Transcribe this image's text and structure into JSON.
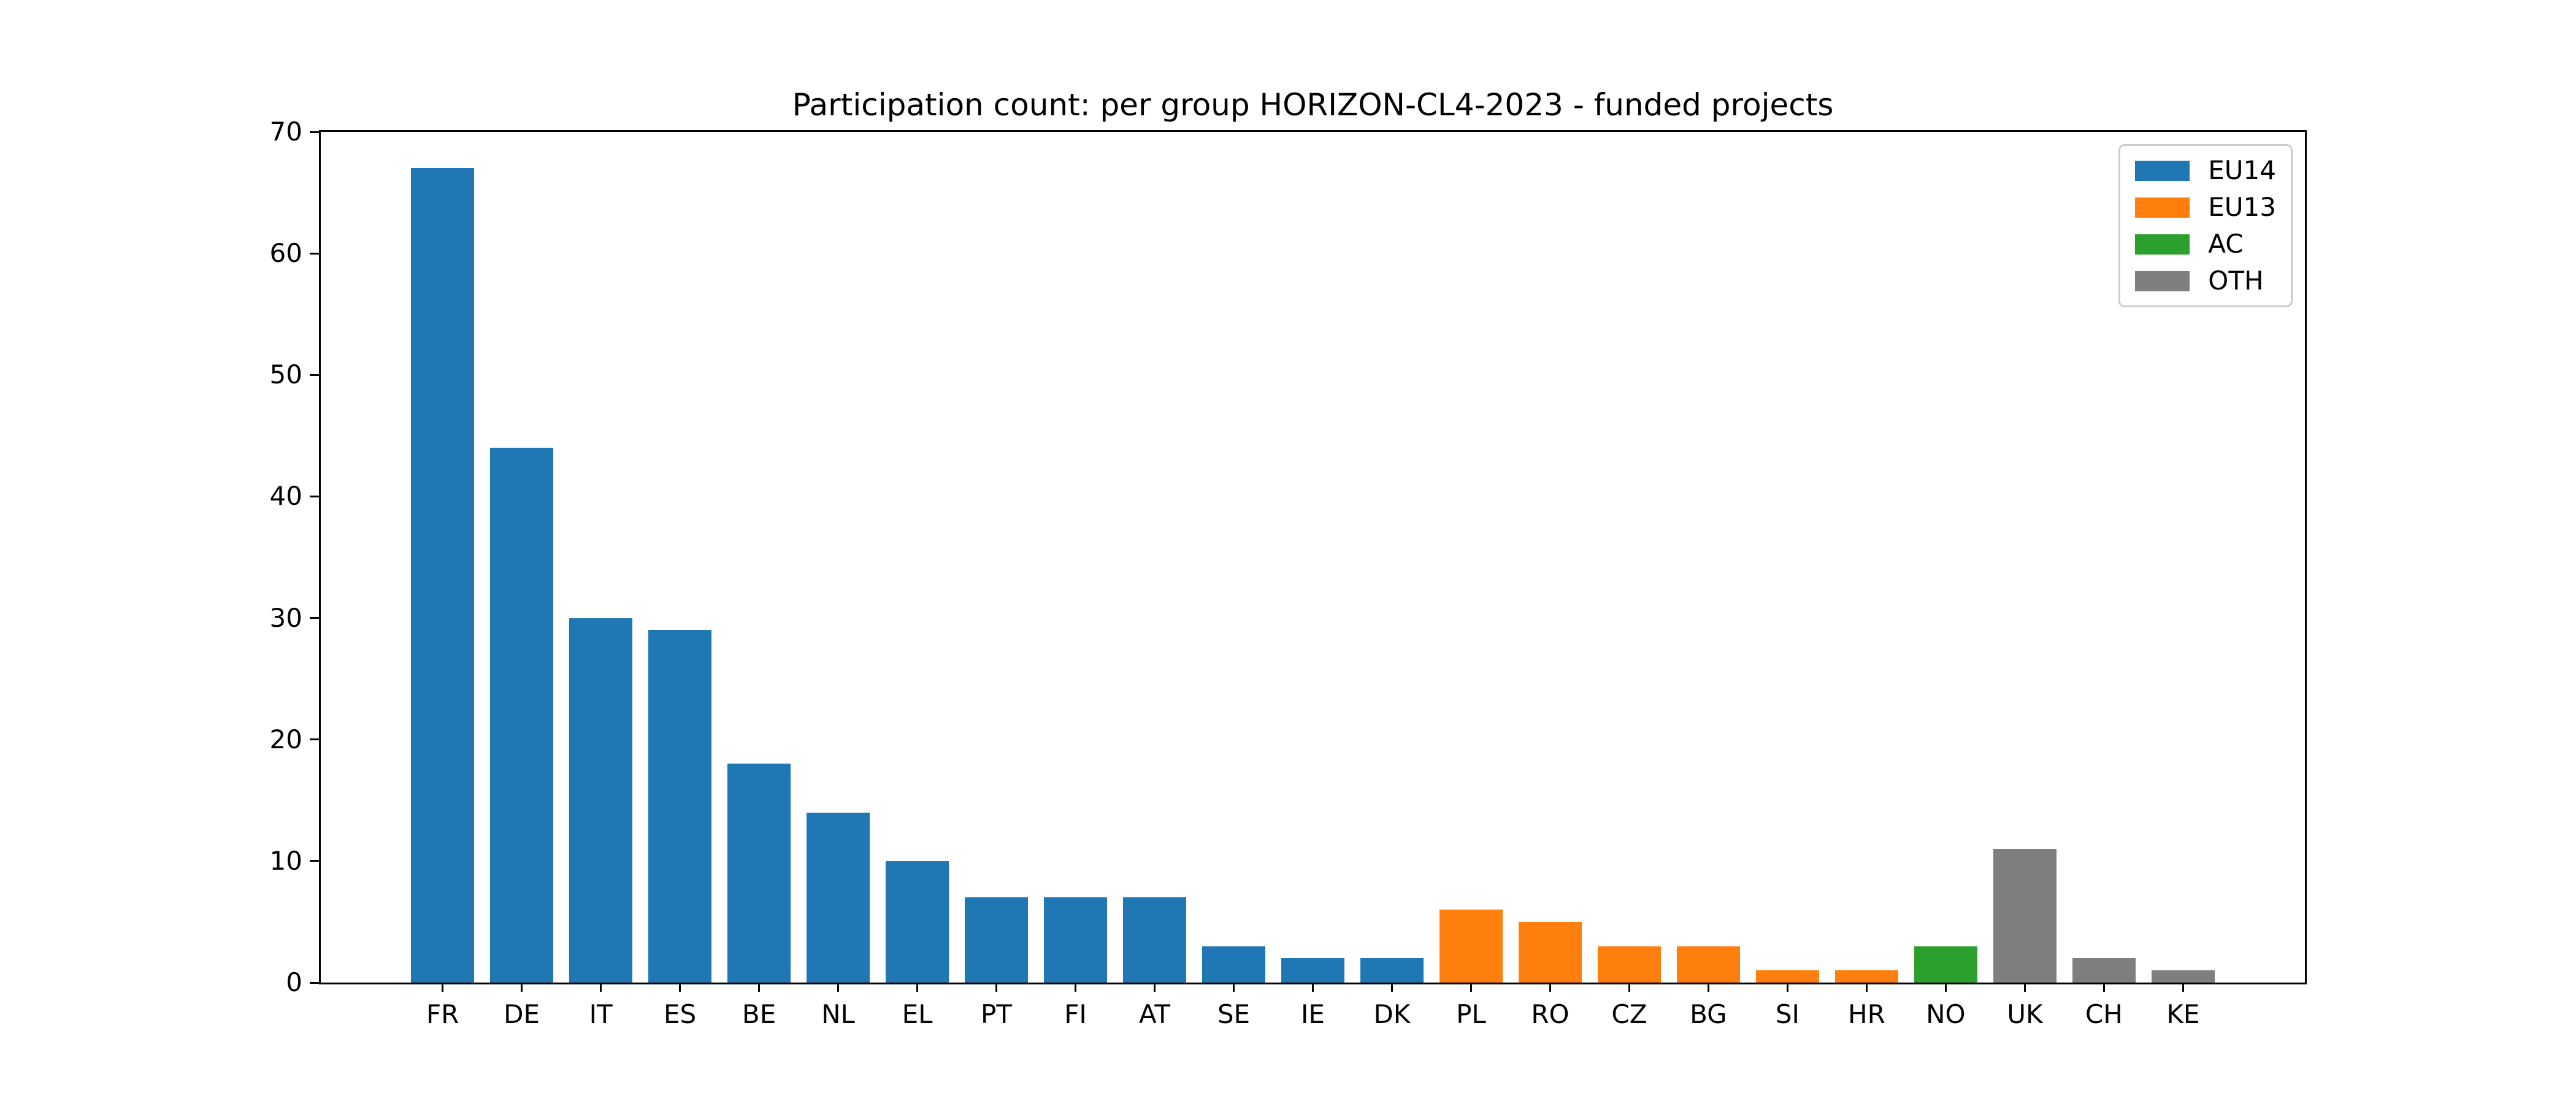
{
  "chart_data": {
    "type": "bar",
    "title": "Participation count: per group HORIZON-CL4-2023 - funded projects",
    "categories": [
      "FR",
      "DE",
      "IT",
      "ES",
      "BE",
      "NL",
      "EL",
      "PT",
      "FI",
      "AT",
      "SE",
      "IE",
      "DK",
      "PL",
      "RO",
      "CZ",
      "BG",
      "SI",
      "HR",
      "NO",
      "UK",
      "CH",
      "KE"
    ],
    "values": [
      67,
      44,
      30,
      29,
      18,
      14,
      10,
      7,
      7,
      7,
      3,
      2,
      2,
      6,
      5,
      3,
      3,
      1,
      1,
      3,
      11,
      2,
      1
    ],
    "groups": [
      "EU14",
      "EU14",
      "EU14",
      "EU14",
      "EU14",
      "EU14",
      "EU14",
      "EU14",
      "EU14",
      "EU14",
      "EU14",
      "EU14",
      "EU14",
      "EU13",
      "EU13",
      "EU13",
      "EU13",
      "EU13",
      "EU13",
      "AC",
      "OTH",
      "OTH",
      "OTH"
    ],
    "group_colors": {
      "EU14": "#1f77b4",
      "EU13": "#ff7f0e",
      "AC": "#2ca02c",
      "OTH": "#7f7f7f"
    },
    "legend": [
      {
        "label": "EU14",
        "color": "#1f77b4"
      },
      {
        "label": "EU13",
        "color": "#ff7f0e"
      },
      {
        "label": "AC",
        "color": "#2ca02c"
      },
      {
        "label": "OTH",
        "color": "#7f7f7f"
      }
    ],
    "xlabel": "",
    "ylabel": "",
    "ylim": [
      0,
      70
    ],
    "yticks": [
      0,
      10,
      20,
      30,
      40,
      50,
      60,
      70
    ],
    "grid": false,
    "legend_position": "upper right",
    "axis_color": "#000000",
    "background_color": "#ffffff"
  }
}
